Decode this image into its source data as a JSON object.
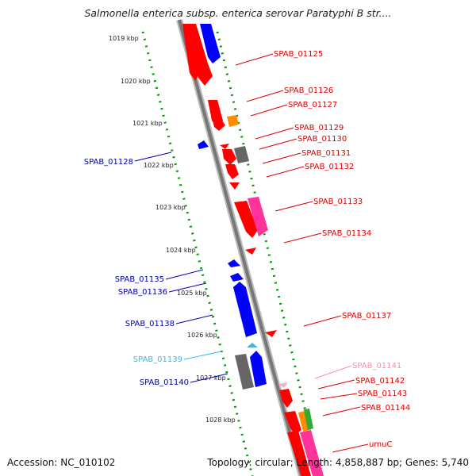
{
  "title": "Salmonella enterica subsp. enterica serovar Paratyphi B str....",
  "footer": {
    "accession": "Accession: NC_010102",
    "summary": "Topology: circular; Length: 4,858,887 bp; Genes: 5,740"
  },
  "colors": {
    "forward": "#ff0000",
    "reverse": "#0000ff",
    "pink": "#ff3399",
    "orange": "#ff8c00",
    "gray": "#666666",
    "cyan": "#33bbee",
    "green": "#008800"
  },
  "scale": {
    "unit": "kbp",
    "ticks": [
      {
        "label": "1019 kbp",
        "value": 1019
      },
      {
        "label": "1020 kbp",
        "value": 1020
      },
      {
        "label": "1021 kbp",
        "value": 1021
      },
      {
        "label": "1022 kbp",
        "value": 1022
      },
      {
        "label": "1023 kbp",
        "value": 1023
      },
      {
        "label": "1024 kbp",
        "value": 1024
      },
      {
        "label": "1025 kbp",
        "value": 1025
      },
      {
        "label": "1026 kbp",
        "value": 1026
      },
      {
        "label": "1027 kbp",
        "value": 1027
      },
      {
        "label": "1028 kbp",
        "value": 1028
      }
    ]
  },
  "gene_labels": {
    "right": [
      {
        "label": "SPAB_01125",
        "color": "#dd0000"
      },
      {
        "label": "SPAB_01126",
        "color": "#dd0000"
      },
      {
        "label": "SPAB_01127",
        "color": "#dd0000"
      },
      {
        "label": "SPAB_01129",
        "color": "#dd0000"
      },
      {
        "label": "SPAB_01130",
        "color": "#dd0000"
      },
      {
        "label": "SPAB_01131",
        "color": "#dd0000"
      },
      {
        "label": "SPAB_01132",
        "color": "#dd0000"
      },
      {
        "label": "SPAB_01133",
        "color": "#dd0000"
      },
      {
        "label": "SPAB_01134",
        "color": "#dd0000"
      },
      {
        "label": "SPAB_01137",
        "color": "#dd0000"
      },
      {
        "label": "SPAB_01141",
        "color": "#ff88bb"
      },
      {
        "label": "SPAB_01142",
        "color": "#dd0000"
      },
      {
        "label": "SPAB_01143",
        "color": "#dd0000"
      },
      {
        "label": "SPAB_01144",
        "color": "#dd0000"
      },
      {
        "label": "umuC",
        "color": "#dd0000"
      }
    ],
    "left": [
      {
        "label": "SPAB_01128",
        "color": "#0000aa"
      },
      {
        "label": "SPAB_01135",
        "color": "#0000aa"
      },
      {
        "label": "SPAB_01136",
        "color": "#0000aa"
      },
      {
        "label": "SPAB_01138",
        "color": "#0000aa"
      },
      {
        "label": "SPAB_01139",
        "color": "#33bbee"
      },
      {
        "label": "SPAB_01140",
        "color": "#0000aa"
      }
    ]
  }
}
